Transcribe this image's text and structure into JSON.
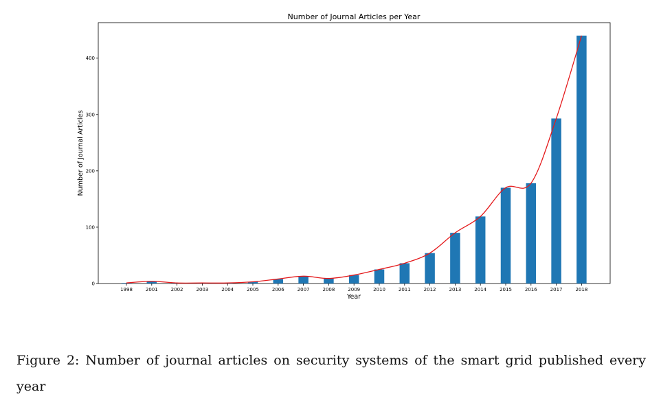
{
  "chart_data": {
    "type": "bar",
    "title": "Number of Journal Articles per Year",
    "xlabel": "Year",
    "ylabel": "Number of Journal Articles",
    "categories": [
      "1998",
      "2001",
      "2002",
      "2003",
      "2004",
      "2005",
      "2006",
      "2007",
      "2008",
      "2009",
      "2010",
      "2011",
      "2012",
      "2013",
      "2014",
      "2015",
      "2016",
      "2017",
      "2018"
    ],
    "values": [
      1,
      4,
      1,
      1,
      1,
      3,
      8,
      13,
      9,
      15,
      25,
      36,
      54,
      90,
      119,
      170,
      178,
      293,
      440
    ],
    "line_overlay": true,
    "yticks": [
      0,
      100,
      200,
      300,
      400
    ],
    "ylim": [
      0,
      463
    ],
    "grid": false,
    "colors": {
      "bar": "#1f77b4",
      "line": "#e41a1c"
    }
  },
  "caption": "Figure 2:  Number of journal articles on security systems of the smart grid published every year"
}
